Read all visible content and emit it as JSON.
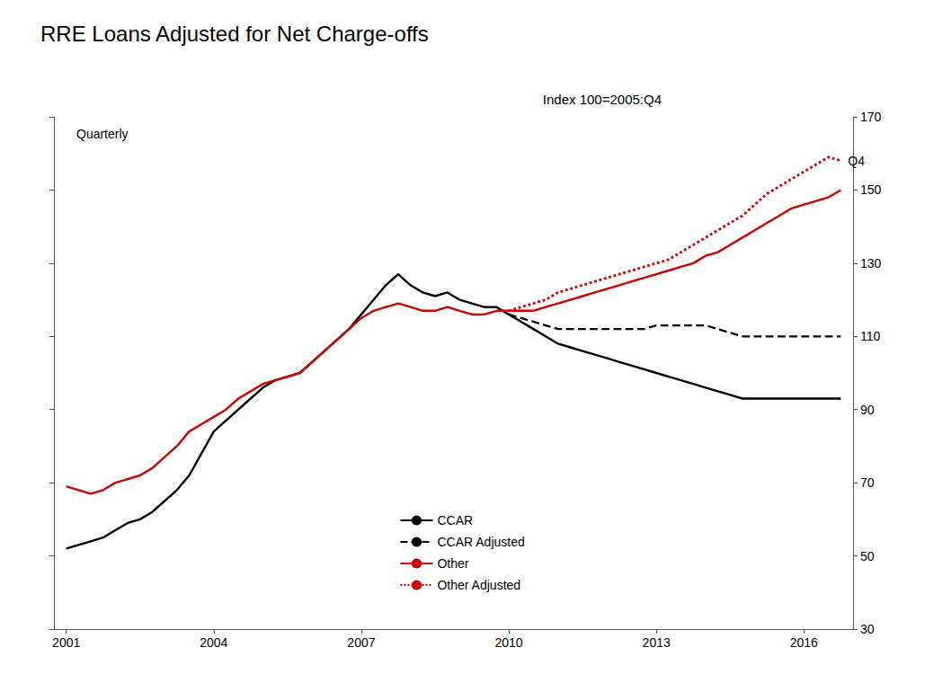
{
  "chart_data": {
    "type": "line",
    "title": "RRE Loans Adjusted for Net Charge-offs",
    "subtitle": "Index 100=2005:Q4",
    "annotations": [
      {
        "text": "Quarterly"
      },
      {
        "text": "Q4",
        "x": 2016.75,
        "y": 158
      }
    ],
    "xlim": [
      2000.75,
      2017.0
    ],
    "xticks": [
      2001,
      2004,
      2007,
      2010,
      2013,
      2016
    ],
    "ylim": [
      30,
      170
    ],
    "yticks": [
      30,
      50,
      70,
      90,
      110,
      130,
      150,
      170
    ],
    "grid": false,
    "legend": "bottom",
    "x": [
      2001,
      2001.25,
      2001.5,
      2001.75,
      2002,
      2002.25,
      2002.5,
      2002.75,
      2003,
      2003.25,
      2003.5,
      2003.75,
      2004,
      2004.25,
      2004.5,
      2004.75,
      2005,
      2005.25,
      2005.5,
      2005.75,
      2006,
      2006.25,
      2006.5,
      2006.75,
      2007,
      2007.25,
      2007.5,
      2007.75,
      2008,
      2008.25,
      2008.5,
      2008.75,
      2009,
      2009.25,
      2009.5,
      2009.75,
      2010,
      2010.25,
      2010.5,
      2010.75,
      2011,
      2011.25,
      2011.5,
      2011.75,
      2012,
      2012.25,
      2012.5,
      2012.75,
      2013,
      2013.25,
      2013.5,
      2013.75,
      2014,
      2014.25,
      2014.5,
      2014.75,
      2015,
      2015.25,
      2015.5,
      2015.75,
      2016,
      2016.25,
      2016.5,
      2016.75
    ],
    "series": [
      {
        "name": "CCAR",
        "color": "#000000",
        "line_style": "solid",
        "values": [
          52,
          53,
          54,
          55,
          57,
          59,
          60,
          62,
          65,
          68,
          72,
          78,
          84,
          87,
          90,
          93,
          96,
          98,
          99,
          100,
          103,
          106,
          109,
          112,
          116,
          120,
          124,
          127,
          124,
          122,
          121,
          122,
          120,
          119,
          118,
          118,
          116,
          114,
          112,
          110,
          108,
          107,
          106,
          105,
          104,
          103,
          102,
          101,
          100,
          99,
          98,
          97,
          96,
          95,
          94,
          93,
          93,
          93,
          93,
          93,
          93,
          93,
          93,
          93
        ]
      },
      {
        "name": "CCAR Adjusted",
        "color": "#000000",
        "line_style": "dashed",
        "values": [
          null,
          null,
          null,
          null,
          null,
          null,
          null,
          null,
          null,
          null,
          null,
          null,
          null,
          null,
          null,
          null,
          null,
          null,
          null,
          null,
          null,
          null,
          null,
          null,
          null,
          null,
          null,
          null,
          null,
          null,
          null,
          null,
          null,
          null,
          null,
          null,
          116,
          115,
          114,
          113,
          112,
          112,
          112,
          112,
          112,
          112,
          112,
          112,
          113,
          113,
          113,
          113,
          113,
          112,
          111,
          110,
          110,
          110,
          110,
          110,
          110,
          110,
          110,
          110
        ]
      },
      {
        "name": "Other",
        "color": "#cc0000",
        "line_style": "solid",
        "values": [
          69,
          68,
          67,
          68,
          70,
          71,
          72,
          74,
          77,
          80,
          84,
          86,
          88,
          90,
          93,
          95,
          97,
          98,
          99,
          100,
          103,
          106,
          109,
          112,
          115,
          117,
          118,
          119,
          118,
          117,
          117,
          118,
          117,
          116,
          116,
          117,
          117,
          117,
          117,
          118,
          119,
          120,
          121,
          122,
          123,
          124,
          125,
          126,
          127,
          128,
          129,
          130,
          132,
          133,
          135,
          137,
          139,
          141,
          143,
          145,
          146,
          147,
          148,
          150
        ]
      },
      {
        "name": "Other Adjusted",
        "color": "#cc0000",
        "line_style": "dotted",
        "values": [
          null,
          null,
          null,
          null,
          null,
          null,
          null,
          null,
          null,
          null,
          null,
          null,
          null,
          null,
          null,
          null,
          null,
          null,
          null,
          null,
          null,
          null,
          null,
          null,
          null,
          null,
          null,
          null,
          null,
          null,
          null,
          null,
          null,
          null,
          null,
          null,
          117,
          118,
          119,
          120,
          122,
          123,
          124,
          125,
          126,
          127,
          128,
          129,
          130,
          131,
          133,
          135,
          137,
          139,
          141,
          143,
          146,
          149,
          151,
          153,
          155,
          157,
          159,
          158
        ]
      }
    ]
  }
}
